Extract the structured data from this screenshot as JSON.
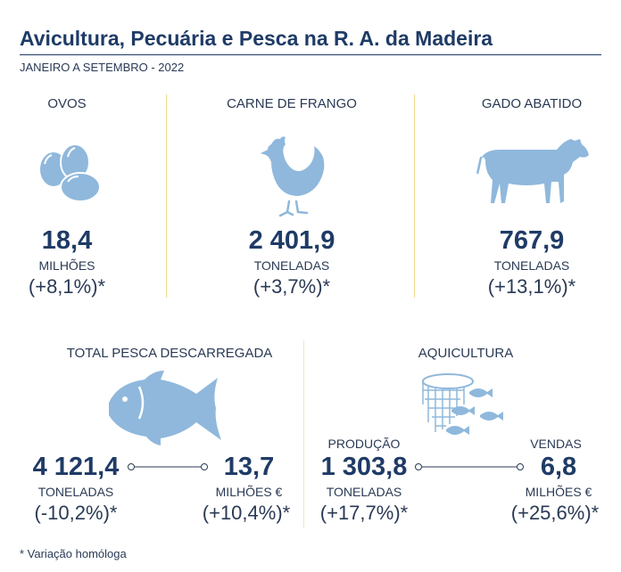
{
  "header": {
    "title": "Avicultura, Pecuária e Pesca na R. A. da Madeira",
    "subtitle": "JANEIRO A SETEMBRO - 2022"
  },
  "ovos": {
    "label": "OVOS",
    "value": "18,4",
    "unit": "MILHÕES",
    "variation": "(+8,1%)*",
    "icon": "eggs-icon"
  },
  "frango": {
    "label": "CARNE DE FRANGO",
    "value": "2 401,9",
    "unit": "TONELADAS",
    "variation": "(+3,7%)*",
    "icon": "chicken-icon"
  },
  "gado": {
    "label": "GADO ABATIDO",
    "value": "767,9",
    "unit": "TONELADAS",
    "variation": "(+13,1%)*",
    "icon": "cow-icon"
  },
  "pesca": {
    "label": "TOTAL PESCA DESCARREGADA",
    "icon": "fish-icon",
    "left": {
      "value": "4 121,4",
      "unit": "TONELADAS",
      "variation": "(-10,2%)*"
    },
    "right": {
      "value": "13,7",
      "unit": "MILHÕES €",
      "variation": "(+10,4%)*"
    }
  },
  "aquicultura": {
    "label": "AQUICULTURA",
    "icon": "fish-net-icon",
    "left": {
      "caption": "PRODUÇÃO",
      "value": "1 303,8",
      "unit": "TONELADAS",
      "variation": "(+17,7%)*"
    },
    "right": {
      "caption": "VENDAS",
      "value": "6,8",
      "unit": "MILHÕES €",
      "variation": "(+25,6%)*"
    }
  },
  "footnote": "* Variação homóloga",
  "colors": {
    "navy": "#1f3b66",
    "icon_blue": "#8fb8dc",
    "divider": "#f0dc8c"
  }
}
